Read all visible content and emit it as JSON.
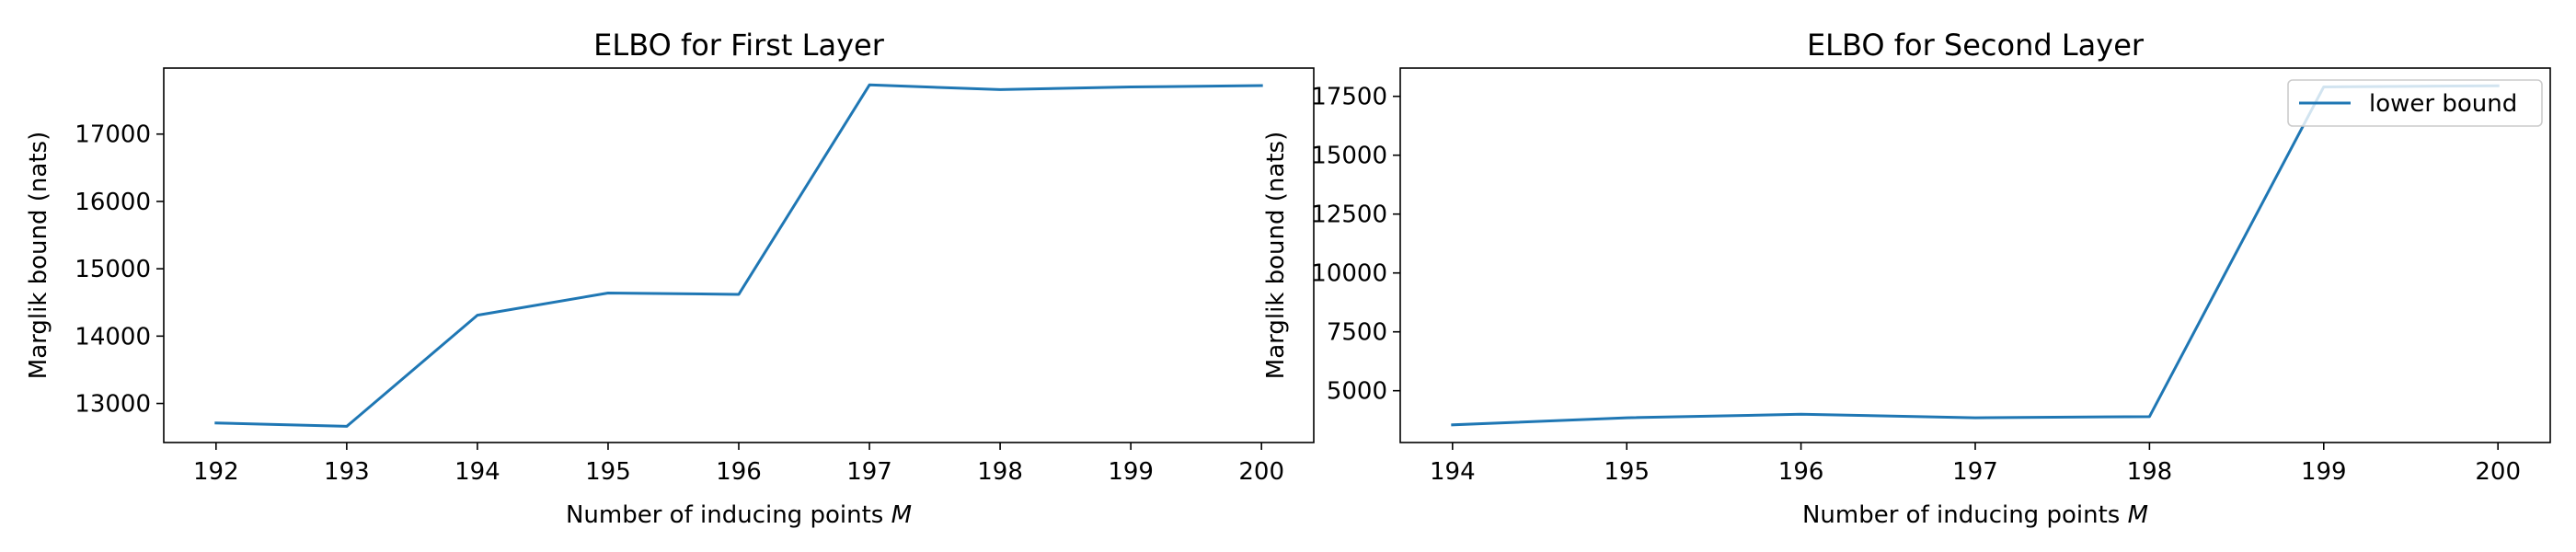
{
  "chart_data": [
    {
      "type": "line",
      "title": "ELBO for First Layer",
      "xlabel": "Number of inducing points",
      "xlabel_symbol": "M",
      "ylabel": "Marglik bound (nats)",
      "x": [
        192,
        193,
        194,
        195,
        196,
        197,
        198,
        199,
        200
      ],
      "xlim": [
        191.6,
        200.4
      ],
      "ylim": [
        12420,
        17980
      ],
      "xticks": [
        192,
        193,
        194,
        195,
        196,
        197,
        198,
        199,
        200
      ],
      "yticks": [
        13000,
        14000,
        15000,
        16000,
        17000
      ],
      "grid": false,
      "series": [
        {
          "values": [
            12710,
            12660,
            14310,
            14640,
            14620,
            17730,
            17660,
            17700,
            17720
          ],
          "color": "#1f77b4"
        }
      ]
    },
    {
      "type": "line",
      "title": "ELBO for Second Layer",
      "xlabel": "Number of inducing points",
      "xlabel_symbol": "M",
      "ylabel": "Marglik bound (nats)",
      "x": [
        194,
        195,
        196,
        197,
        198,
        199,
        200
      ],
      "xlim": [
        193.7,
        200.3
      ],
      "ylim": [
        2800,
        18700
      ],
      "xticks": [
        194,
        195,
        196,
        197,
        198,
        199,
        200
      ],
      "yticks": [
        5000,
        7500,
        10000,
        12500,
        15000,
        17500
      ],
      "grid": false,
      "legend": "top-right",
      "series": [
        {
          "name": "lower bound",
          "values": [
            3550,
            3850,
            4000,
            3850,
            3900,
            17900,
            17950
          ],
          "color": "#1f77b4"
        }
      ]
    }
  ]
}
